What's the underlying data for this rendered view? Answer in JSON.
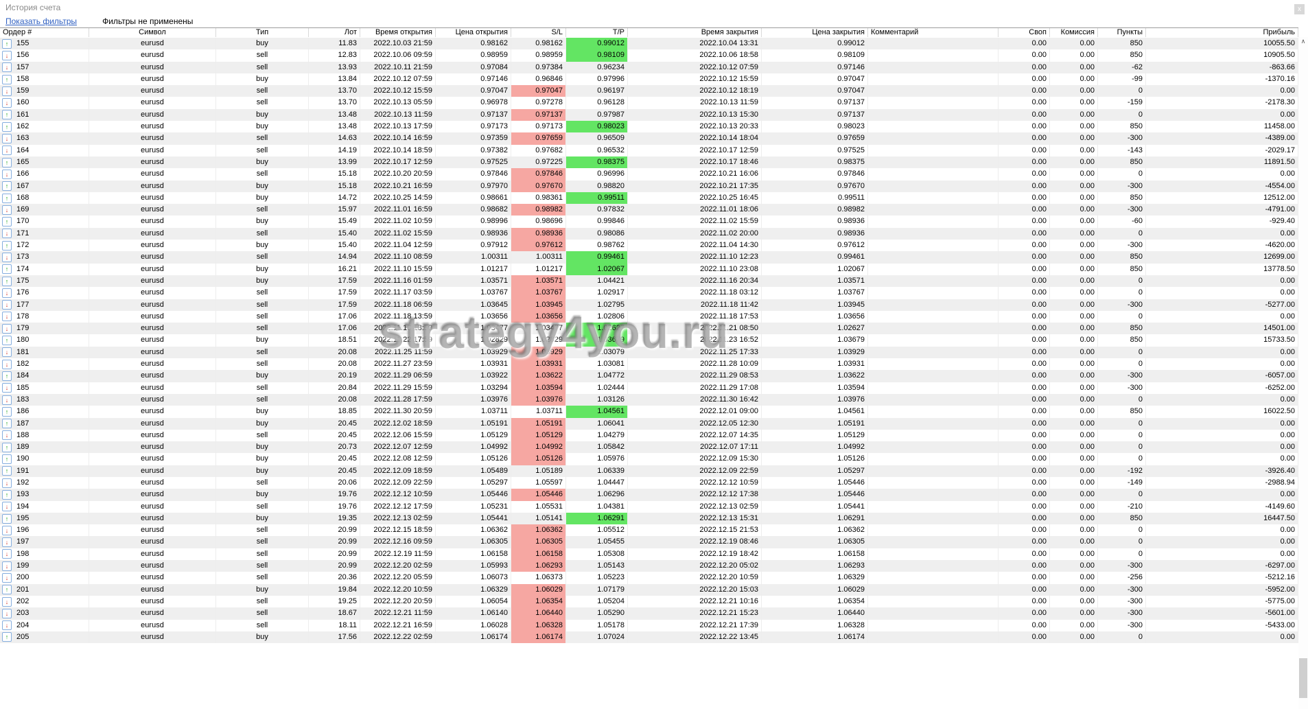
{
  "window": {
    "title": "История счета"
  },
  "filters": {
    "show_filters_link": "Показать фильтры",
    "status": "Фильтры не применены"
  },
  "icons": {
    "close": "x",
    "scroll_up": "∧",
    "buy_arrow": "↑",
    "sell_arrow": "↓"
  },
  "colors": {
    "link": "#2e5fc1",
    "title_text": "#8a8a8a",
    "sl_highlight": "#f6a7a2",
    "tp_highlight": "#63e563",
    "row_stripe": "#efefef",
    "buy_icon": "#1ca21c",
    "sell_icon": "#d23a30"
  },
  "watermark": "strategy4you.ru",
  "table": {
    "columns": [
      {
        "key": "order",
        "label": "Ордер #"
      },
      {
        "key": "symbol",
        "label": "Символ"
      },
      {
        "key": "type",
        "label": "Тип"
      },
      {
        "key": "lot",
        "label": "Лот"
      },
      {
        "key": "open_time",
        "label": "Время открытия"
      },
      {
        "key": "open_price",
        "label": "Цена открытия"
      },
      {
        "key": "sl",
        "label": "S/L"
      },
      {
        "key": "tp",
        "label": "T/P"
      },
      {
        "key": "close_time",
        "label": "Время закрытия"
      },
      {
        "key": "close_price",
        "label": "Цена закрытия"
      },
      {
        "key": "comment",
        "label": "Комментарий"
      },
      {
        "key": "swap",
        "label": "Своп"
      },
      {
        "key": "commission",
        "label": "Комиссия"
      },
      {
        "key": "points",
        "label": "Пункты"
      },
      {
        "key": "profit",
        "label": "Прибыль"
      }
    ],
    "row_fields": [
      "order",
      "symbol",
      "type",
      "lot",
      "open_time",
      "open_price",
      "sl",
      "tp",
      "close_time",
      "close_price",
      "comment",
      "swap",
      "commission",
      "points",
      "profit",
      "highlight"
    ],
    "rows": [
      [
        "155",
        "eurusd",
        "buy",
        "11.83",
        "2022.10.03 21:59",
        "0.98162",
        "0.98162",
        "0.99012",
        "2022.10.04 13:31",
        "0.99012",
        "",
        "0.00",
        "0.00",
        "850",
        "10055.50",
        "tp"
      ],
      [
        "156",
        "eurusd",
        "sell",
        "12.83",
        "2022.10.06 09:59",
        "0.98959",
        "0.98959",
        "0.98109",
        "2022.10.06 18:58",
        "0.98109",
        "",
        "0.00",
        "0.00",
        "850",
        "10905.50",
        "tp"
      ],
      [
        "157",
        "eurusd",
        "sell",
        "13.93",
        "2022.10.11 21:59",
        "0.97084",
        "0.97384",
        "0.96234",
        "2022.10.12 07:59",
        "0.97146",
        "",
        "0.00",
        "0.00",
        "-62",
        "-863.66",
        ""
      ],
      [
        "158",
        "eurusd",
        "buy",
        "13.84",
        "2022.10.12 07:59",
        "0.97146",
        "0.96846",
        "0.97996",
        "2022.10.12 15:59",
        "0.97047",
        "",
        "0.00",
        "0.00",
        "-99",
        "-1370.16",
        ""
      ],
      [
        "159",
        "eurusd",
        "sell",
        "13.70",
        "2022.10.12 15:59",
        "0.97047",
        "0.97047",
        "0.96197",
        "2022.10.12 18:19",
        "0.97047",
        "",
        "0.00",
        "0.00",
        "0",
        "0.00",
        "sl"
      ],
      [
        "160",
        "eurusd",
        "sell",
        "13.70",
        "2022.10.13 05:59",
        "0.96978",
        "0.97278",
        "0.96128",
        "2022.10.13 11:59",
        "0.97137",
        "",
        "0.00",
        "0.00",
        "-159",
        "-2178.30",
        ""
      ],
      [
        "161",
        "eurusd",
        "buy",
        "13.48",
        "2022.10.13 11:59",
        "0.97137",
        "0.97137",
        "0.97987",
        "2022.10.13 15:30",
        "0.97137",
        "",
        "0.00",
        "0.00",
        "0",
        "0.00",
        "sl"
      ],
      [
        "162",
        "eurusd",
        "buy",
        "13.48",
        "2022.10.13 17:59",
        "0.97173",
        "0.97173",
        "0.98023",
        "2022.10.13 20:33",
        "0.98023",
        "",
        "0.00",
        "0.00",
        "850",
        "11458.00",
        "tp"
      ],
      [
        "163",
        "eurusd",
        "sell",
        "14.63",
        "2022.10.14 16:59",
        "0.97359",
        "0.97659",
        "0.96509",
        "2022.10.14 18:04",
        "0.97659",
        "",
        "0.00",
        "0.00",
        "-300",
        "-4389.00",
        "sl"
      ],
      [
        "164",
        "eurusd",
        "sell",
        "14.19",
        "2022.10.14 18:59",
        "0.97382",
        "0.97682",
        "0.96532",
        "2022.10.17 12:59",
        "0.97525",
        "",
        "0.00",
        "0.00",
        "-143",
        "-2029.17",
        ""
      ],
      [
        "165",
        "eurusd",
        "buy",
        "13.99",
        "2022.10.17 12:59",
        "0.97525",
        "0.97225",
        "0.98375",
        "2022.10.17 18:46",
        "0.98375",
        "",
        "0.00",
        "0.00",
        "850",
        "11891.50",
        "tp"
      ],
      [
        "166",
        "eurusd",
        "sell",
        "15.18",
        "2022.10.20 20:59",
        "0.97846",
        "0.97846",
        "0.96996",
        "2022.10.21 16:06",
        "0.97846",
        "",
        "0.00",
        "0.00",
        "0",
        "0.00",
        "sl"
      ],
      [
        "167",
        "eurusd",
        "buy",
        "15.18",
        "2022.10.21 16:59",
        "0.97970",
        "0.97670",
        "0.98820",
        "2022.10.21 17:35",
        "0.97670",
        "",
        "0.00",
        "0.00",
        "-300",
        "-4554.00",
        "sl"
      ],
      [
        "168",
        "eurusd",
        "buy",
        "14.72",
        "2022.10.25 14:59",
        "0.98661",
        "0.98361",
        "0.99511",
        "2022.10.25 16:45",
        "0.99511",
        "",
        "0.00",
        "0.00",
        "850",
        "12512.00",
        "tp"
      ],
      [
        "169",
        "eurusd",
        "sell",
        "15.97",
        "2022.11.01 16:59",
        "0.98682",
        "0.98982",
        "0.97832",
        "2022.11.01 18:06",
        "0.98982",
        "",
        "0.00",
        "0.00",
        "-300",
        "-4791.00",
        "sl"
      ],
      [
        "170",
        "eurusd",
        "buy",
        "15.49",
        "2022.11.02 10:59",
        "0.98996",
        "0.98696",
        "0.99846",
        "2022.11.02 15:59",
        "0.98936",
        "",
        "0.00",
        "0.00",
        "-60",
        "-929.40",
        ""
      ],
      [
        "171",
        "eurusd",
        "sell",
        "15.40",
        "2022.11.02 15:59",
        "0.98936",
        "0.98936",
        "0.98086",
        "2022.11.02 20:00",
        "0.98936",
        "",
        "0.00",
        "0.00",
        "0",
        "0.00",
        "sl"
      ],
      [
        "172",
        "eurusd",
        "buy",
        "15.40",
        "2022.11.04 12:59",
        "0.97912",
        "0.97612",
        "0.98762",
        "2022.11.04 14:30",
        "0.97612",
        "",
        "0.00",
        "0.00",
        "-300",
        "-4620.00",
        "sl"
      ],
      [
        "173",
        "eurusd",
        "sell",
        "14.94",
        "2022.11.10 08:59",
        "1.00311",
        "1.00311",
        "0.99461",
        "2022.11.10 12:23",
        "0.99461",
        "",
        "0.00",
        "0.00",
        "850",
        "12699.00",
        "tp"
      ],
      [
        "174",
        "eurusd",
        "buy",
        "16.21",
        "2022.11.10 15:59",
        "1.01217",
        "1.01217",
        "1.02067",
        "2022.11.10 23:08",
        "1.02067",
        "",
        "0.00",
        "0.00",
        "850",
        "13778.50",
        "tp"
      ],
      [
        "175",
        "eurusd",
        "buy",
        "17.59",
        "2022.11.16 01:59",
        "1.03571",
        "1.03571",
        "1.04421",
        "2022.11.16 20:34",
        "1.03571",
        "",
        "0.00",
        "0.00",
        "0",
        "0.00",
        "sl"
      ],
      [
        "176",
        "eurusd",
        "sell",
        "17.59",
        "2022.11.17 03:59",
        "1.03767",
        "1.03767",
        "1.02917",
        "2022.11.18 03:12",
        "1.03767",
        "",
        "0.00",
        "0.00",
        "0",
        "0.00",
        "sl"
      ],
      [
        "177",
        "eurusd",
        "sell",
        "17.59",
        "2022.11.18 06:59",
        "1.03645",
        "1.03945",
        "1.02795",
        "2022.11.18 11:42",
        "1.03945",
        "",
        "0.00",
        "0.00",
        "-300",
        "-5277.00",
        "sl"
      ],
      [
        "178",
        "eurusd",
        "sell",
        "17.06",
        "2022.11.18 13:59",
        "1.03656",
        "1.03656",
        "1.02806",
        "2022.11.18 17:53",
        "1.03656",
        "",
        "0.00",
        "0.00",
        "0",
        "0.00",
        "sl"
      ],
      [
        "179",
        "eurusd",
        "sell",
        "17.06",
        "2022.11.18 18:59",
        "1.03477",
        "1.03477",
        "1.02627",
        "2022.11.21 08:50",
        "1.02627",
        "",
        "0.00",
        "0.00",
        "850",
        "14501.00",
        "tp"
      ],
      [
        "180",
        "eurusd",
        "buy",
        "18.51",
        "2022.11.22 17:59",
        "1.02829",
        "1.02829",
        "1.03679",
        "2022.11.23 16:52",
        "1.03679",
        "",
        "0.00",
        "0.00",
        "850",
        "15733.50",
        "tp"
      ],
      [
        "181",
        "eurusd",
        "sell",
        "20.08",
        "2022.11.25 11:59",
        "1.03929",
        "1.03929",
        "1.03079",
        "2022.11.25 17:33",
        "1.03929",
        "",
        "0.00",
        "0.00",
        "0",
        "0.00",
        "sl"
      ],
      [
        "182",
        "eurusd",
        "sell",
        "20.08",
        "2022.11.27 23:59",
        "1.03931",
        "1.03931",
        "1.03081",
        "2022.11.28 10:09",
        "1.03931",
        "",
        "0.00",
        "0.00",
        "0",
        "0.00",
        "sl"
      ],
      [
        "184",
        "eurusd",
        "buy",
        "20.19",
        "2022.11.29 06:59",
        "1.03922",
        "1.03622",
        "1.04772",
        "2022.11.29 08:53",
        "1.03622",
        "",
        "0.00",
        "0.00",
        "-300",
        "-6057.00",
        "sl"
      ],
      [
        "185",
        "eurusd",
        "sell",
        "20.84",
        "2022.11.29 15:59",
        "1.03294",
        "1.03594",
        "1.02444",
        "2022.11.29 17:08",
        "1.03594",
        "",
        "0.00",
        "0.00",
        "-300",
        "-6252.00",
        "sl"
      ],
      [
        "183",
        "eurusd",
        "sell",
        "20.08",
        "2022.11.28 17:59",
        "1.03976",
        "1.03976",
        "1.03126",
        "2022.11.30 16:42",
        "1.03976",
        "",
        "0.00",
        "0.00",
        "0",
        "0.00",
        "sl"
      ],
      [
        "186",
        "eurusd",
        "buy",
        "18.85",
        "2022.11.30 20:59",
        "1.03711",
        "1.03711",
        "1.04561",
        "2022.12.01 09:00",
        "1.04561",
        "",
        "0.00",
        "0.00",
        "850",
        "16022.50",
        "tp"
      ],
      [
        "187",
        "eurusd",
        "buy",
        "20.45",
        "2022.12.02 18:59",
        "1.05191",
        "1.05191",
        "1.06041",
        "2022.12.05 12:30",
        "1.05191",
        "",
        "0.00",
        "0.00",
        "0",
        "0.00",
        "sl"
      ],
      [
        "188",
        "eurusd",
        "sell",
        "20.45",
        "2022.12.06 15:59",
        "1.05129",
        "1.05129",
        "1.04279",
        "2022.12.07 14:35",
        "1.05129",
        "",
        "0.00",
        "0.00",
        "0",
        "0.00",
        "sl"
      ],
      [
        "189",
        "eurusd",
        "buy",
        "20.73",
        "2022.12.07 12:59",
        "1.04992",
        "1.04992",
        "1.05842",
        "2022.12.07 17:11",
        "1.04992",
        "",
        "0.00",
        "0.00",
        "0",
        "0.00",
        "sl"
      ],
      [
        "190",
        "eurusd",
        "buy",
        "20.45",
        "2022.12.08 12:59",
        "1.05126",
        "1.05126",
        "1.05976",
        "2022.12.09 15:30",
        "1.05126",
        "",
        "0.00",
        "0.00",
        "0",
        "0.00",
        "sl"
      ],
      [
        "191",
        "eurusd",
        "buy",
        "20.45",
        "2022.12.09 18:59",
        "1.05489",
        "1.05189",
        "1.06339",
        "2022.12.09 22:59",
        "1.05297",
        "",
        "0.00",
        "0.00",
        "-192",
        "-3926.40",
        ""
      ],
      [
        "192",
        "eurusd",
        "sell",
        "20.06",
        "2022.12.09 22:59",
        "1.05297",
        "1.05597",
        "1.04447",
        "2022.12.12 10:59",
        "1.05446",
        "",
        "0.00",
        "0.00",
        "-149",
        "-2988.94",
        ""
      ],
      [
        "193",
        "eurusd",
        "buy",
        "19.76",
        "2022.12.12 10:59",
        "1.05446",
        "1.05446",
        "1.06296",
        "2022.12.12 17:38",
        "1.05446",
        "",
        "0.00",
        "0.00",
        "0",
        "0.00",
        "sl"
      ],
      [
        "194",
        "eurusd",
        "sell",
        "19.76",
        "2022.12.12 17:59",
        "1.05231",
        "1.05531",
        "1.04381",
        "2022.12.13 02:59",
        "1.05441",
        "",
        "0.00",
        "0.00",
        "-210",
        "-4149.60",
        ""
      ],
      [
        "195",
        "eurusd",
        "buy",
        "19.35",
        "2022.12.13 02:59",
        "1.05441",
        "1.05141",
        "1.06291",
        "2022.12.13 15:31",
        "1.06291",
        "",
        "0.00",
        "0.00",
        "850",
        "16447.50",
        "tp"
      ],
      [
        "196",
        "eurusd",
        "sell",
        "20.99",
        "2022.12.15 18:59",
        "1.06362",
        "1.06362",
        "1.05512",
        "2022.12.15 21:53",
        "1.06362",
        "",
        "0.00",
        "0.00",
        "0",
        "0.00",
        "sl"
      ],
      [
        "197",
        "eurusd",
        "sell",
        "20.99",
        "2022.12.16 09:59",
        "1.06305",
        "1.06305",
        "1.05455",
        "2022.12.19 08:46",
        "1.06305",
        "",
        "0.00",
        "0.00",
        "0",
        "0.00",
        "sl"
      ],
      [
        "198",
        "eurusd",
        "sell",
        "20.99",
        "2022.12.19 11:59",
        "1.06158",
        "1.06158",
        "1.05308",
        "2022.12.19 18:42",
        "1.06158",
        "",
        "0.00",
        "0.00",
        "0",
        "0.00",
        "sl"
      ],
      [
        "199",
        "eurusd",
        "sell",
        "20.99",
        "2022.12.20 02:59",
        "1.05993",
        "1.06293",
        "1.05143",
        "2022.12.20 05:02",
        "1.06293",
        "",
        "0.00",
        "0.00",
        "-300",
        "-6297.00",
        "sl"
      ],
      [
        "200",
        "eurusd",
        "sell",
        "20.36",
        "2022.12.20 05:59",
        "1.06073",
        "1.06373",
        "1.05223",
        "2022.12.20 10:59",
        "1.06329",
        "",
        "0.00",
        "0.00",
        "-256",
        "-5212.16",
        ""
      ],
      [
        "201",
        "eurusd",
        "buy",
        "19.84",
        "2022.12.20 10:59",
        "1.06329",
        "1.06029",
        "1.07179",
        "2022.12.20 15:03",
        "1.06029",
        "",
        "0.00",
        "0.00",
        "-300",
        "-5952.00",
        "sl"
      ],
      [
        "202",
        "eurusd",
        "sell",
        "19.25",
        "2022.12.20 20:59",
        "1.06054",
        "1.06354",
        "1.05204",
        "2022.12.21 10:16",
        "1.06354",
        "",
        "0.00",
        "0.00",
        "-300",
        "-5775.00",
        "sl"
      ],
      [
        "203",
        "eurusd",
        "sell",
        "18.67",
        "2022.12.21 11:59",
        "1.06140",
        "1.06440",
        "1.05290",
        "2022.12.21 15:23",
        "1.06440",
        "",
        "0.00",
        "0.00",
        "-300",
        "-5601.00",
        "sl"
      ],
      [
        "204",
        "eurusd",
        "sell",
        "18.11",
        "2022.12.21 16:59",
        "1.06028",
        "1.06328",
        "1.05178",
        "2022.12.21 17:39",
        "1.06328",
        "",
        "0.00",
        "0.00",
        "-300",
        "-5433.00",
        "sl"
      ],
      [
        "205",
        "eurusd",
        "buy",
        "17.56",
        "2022.12.22 02:59",
        "1.06174",
        "1.06174",
        "1.07024",
        "2022.12.22 13:45",
        "1.06174",
        "",
        "0.00",
        "0.00",
        "0",
        "0.00",
        "sl"
      ]
    ]
  }
}
